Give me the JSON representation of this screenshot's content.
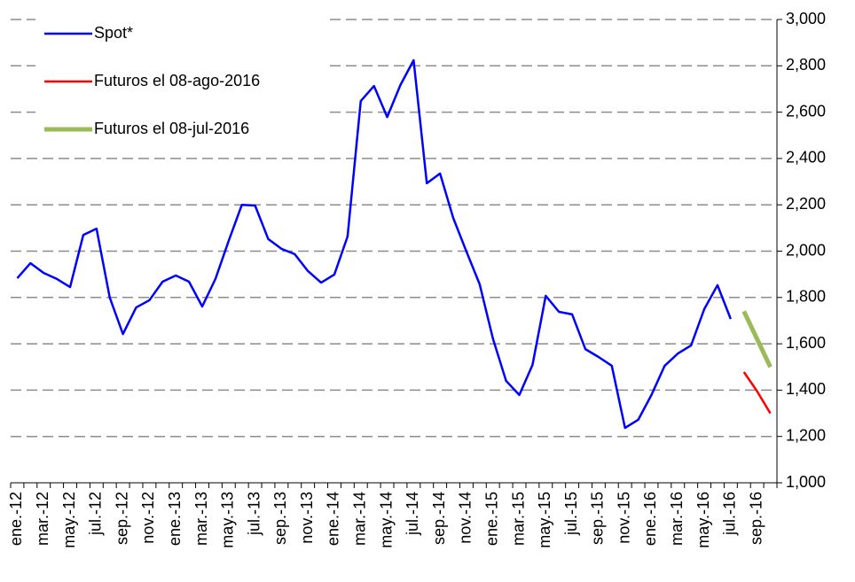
{
  "chart_data": {
    "type": "line",
    "categories": [
      "ene.-12",
      null,
      "mar.-12",
      null,
      "may.-12",
      null,
      "jul.-12",
      null,
      "sep.-12",
      null,
      "nov.-12",
      null,
      "ene.-13",
      null,
      "mar.-13",
      null,
      "may.-13",
      null,
      "jul.-13",
      null,
      "sep.-13",
      null,
      "nov.-13",
      null,
      "ene.-14",
      null,
      "mar.-14",
      null,
      "may.-14",
      null,
      "jul.-14",
      null,
      "sep.-14",
      null,
      "nov.-14",
      null,
      "ene.-15",
      null,
      "mar.-15",
      null,
      "may.-15",
      null,
      "jul.-15",
      null,
      "sep.-15",
      null,
      "nov.-15",
      null,
      "ene.-16",
      null,
      "mar.-16",
      null,
      "may.-16",
      null,
      "jul.-16",
      null,
      "sep.-16",
      null
    ],
    "series": [
      {
        "name": "Spot*",
        "color": "#0000ff",
        "width": 2.5,
        "values": [
          1883,
          1948,
          1906,
          1880,
          1845,
          2070,
          2097,
          1800,
          1642,
          1757,
          1788,
          1868,
          1895,
          1868,
          1761,
          1880,
          2044,
          2200,
          2197,
          2052,
          2010,
          1987,
          1914,
          1864,
          1899,
          2063,
          2648,
          2713,
          2579,
          2717,
          2824,
          2293,
          2335,
          2143,
          1998,
          1857,
          1623,
          1440,
          1379,
          1509,
          1807,
          1738,
          1727,
          1577,
          1543,
          1505,
          1237,
          1272,
          1379,
          1505,
          1558,
          1593,
          1750,
          1853,
          1707,
          null,
          null,
          null
        ]
      },
      {
        "name": "Futuros el 08-ago-2016",
        "color": "#ff0000",
        "width": 2.5,
        "values": [
          null,
          null,
          null,
          null,
          null,
          null,
          null,
          null,
          null,
          null,
          null,
          null,
          null,
          null,
          null,
          null,
          null,
          null,
          null,
          null,
          null,
          null,
          null,
          null,
          null,
          null,
          null,
          null,
          null,
          null,
          null,
          null,
          null,
          null,
          null,
          null,
          null,
          null,
          null,
          null,
          null,
          null,
          null,
          null,
          null,
          null,
          null,
          null,
          null,
          null,
          null,
          null,
          null,
          null,
          null,
          1478,
          1395,
          1300
        ]
      },
      {
        "name": "Futuros el 08-jul-2016",
        "color": "#9bbb59",
        "width": 5,
        "values": [
          null,
          null,
          null,
          null,
          null,
          null,
          null,
          null,
          null,
          null,
          null,
          null,
          null,
          null,
          null,
          null,
          null,
          null,
          null,
          null,
          null,
          null,
          null,
          null,
          null,
          null,
          null,
          null,
          null,
          null,
          null,
          null,
          null,
          null,
          null,
          null,
          null,
          null,
          null,
          null,
          null,
          null,
          null,
          null,
          null,
          null,
          null,
          null,
          null,
          null,
          null,
          null,
          null,
          null,
          null,
          1740,
          1620,
          1500
        ]
      }
    ],
    "ylim": [
      1000,
      3000
    ],
    "yticks": [
      {
        "value": 1000,
        "label": "1,000"
      },
      {
        "value": 1200,
        "label": "1,200"
      },
      {
        "value": 1400,
        "label": "1,400"
      },
      {
        "value": 1600,
        "label": "1,600"
      },
      {
        "value": 1800,
        "label": "1,800"
      },
      {
        "value": 2000,
        "label": "2,000"
      },
      {
        "value": 2200,
        "label": "2,200"
      },
      {
        "value": 2400,
        "label": "2,400"
      },
      {
        "value": 2600,
        "label": "2,600"
      },
      {
        "value": 2800,
        "label": "2,800"
      },
      {
        "value": 3000,
        "label": "3,000"
      }
    ],
    "y_axis_side": "right",
    "grid": true,
    "legend": "top-left"
  }
}
